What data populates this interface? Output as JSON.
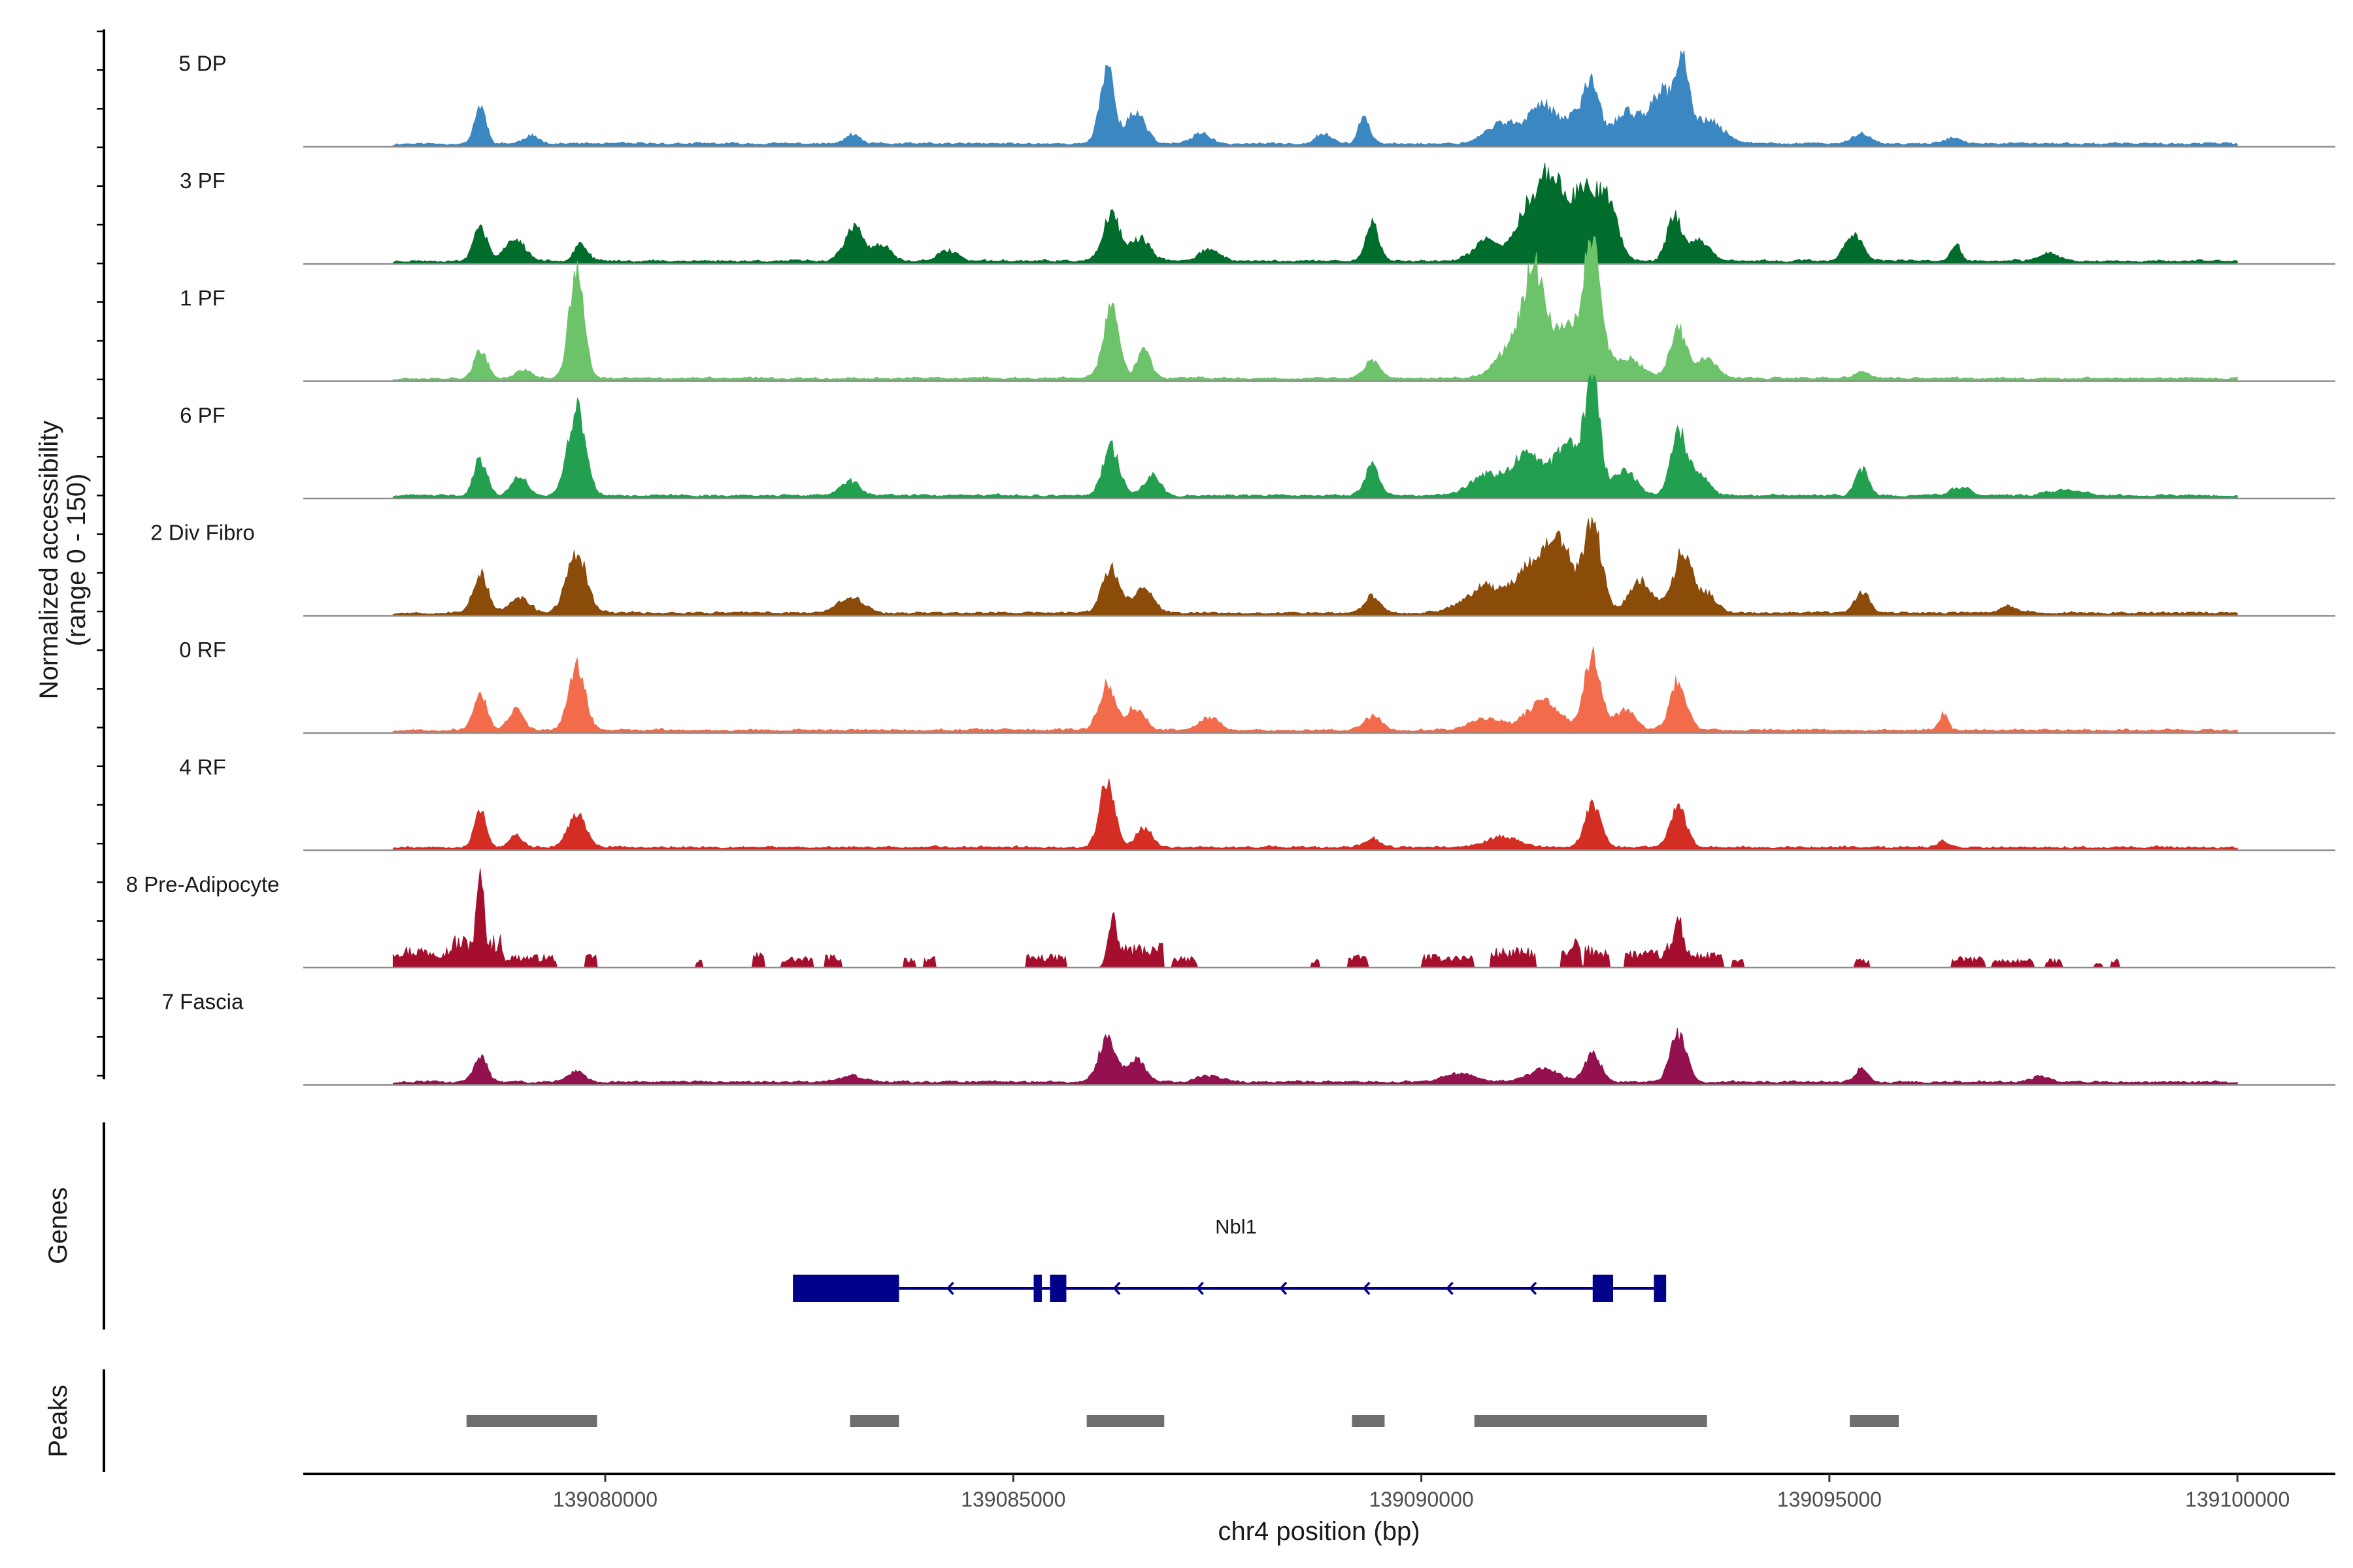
{
  "chart_data": {
    "type": "area",
    "title": "",
    "ylabel_line1": "Normalized accessibility",
    "ylabel_line2": "(range 0 - 150)",
    "y_range": [
      0,
      150
    ],
    "xlabel": "chr4 position (bp)",
    "xlim": [
      139076300,
      139101200
    ],
    "x_ticks": [
      139080000,
      139085000,
      139090000,
      139095000,
      139100000
    ],
    "x_tick_labels": [
      "139080000",
      "139085000",
      "139090000",
      "139095000",
      "139100000"
    ],
    "signal_extent": [
      139077400,
      139100000
    ],
    "tracks": [
      {
        "name": "5 DP",
        "color": "#3A87C2",
        "scale": 1.0,
        "seed": 11,
        "sparse": false,
        "peaks": [
          [
            139078470,
            0.36,
            70
          ],
          [
            139079100,
            0.07,
            100
          ],
          [
            139083030,
            0.09,
            80
          ],
          [
            139086150,
            0.74,
            85
          ],
          [
            139086500,
            0.3,
            120
          ],
          [
            139087300,
            0.11,
            100
          ],
          [
            139088800,
            0.1,
            100
          ],
          [
            139089300,
            0.28,
            65
          ],
          [
            139091000,
            0.2,
            200
          ],
          [
            139091500,
            0.37,
            170
          ],
          [
            139091900,
            0.28,
            120
          ],
          [
            139092100,
            0.53,
            90
          ],
          [
            139092500,
            0.3,
            150
          ],
          [
            139092950,
            0.5,
            160
          ],
          [
            139093200,
            0.58,
            80
          ],
          [
            139093500,
            0.22,
            200
          ],
          [
            139095400,
            0.11,
            100
          ],
          [
            139096500,
            0.06,
            100
          ]
        ]
      },
      {
        "name": "3 PF",
        "color": "#006D2C",
        "scale": 1.0,
        "seed": 23,
        "sparse": false,
        "peaks": [
          [
            139078470,
            0.34,
            80
          ],
          [
            139078900,
            0.21,
            120
          ],
          [
            139079700,
            0.18,
            80
          ],
          [
            139083050,
            0.32,
            120
          ],
          [
            139083400,
            0.15,
            100
          ],
          [
            139084200,
            0.1,
            120
          ],
          [
            139086200,
            0.45,
            100
          ],
          [
            139086550,
            0.22,
            120
          ],
          [
            139087400,
            0.12,
            120
          ],
          [
            139089400,
            0.37,
            80
          ],
          [
            139090800,
            0.2,
            150
          ],
          [
            139091300,
            0.5,
            150
          ],
          [
            139091600,
            0.8,
            140
          ],
          [
            139092000,
            0.72,
            150
          ],
          [
            139092300,
            0.5,
            120
          ],
          [
            139093100,
            0.43,
            90
          ],
          [
            139093400,
            0.2,
            120
          ],
          [
            139095300,
            0.26,
            110
          ],
          [
            139096550,
            0.16,
            60
          ],
          [
            139097700,
            0.07,
            120
          ]
        ]
      },
      {
        "name": "1 PF",
        "color": "#6CC36A",
        "scale": 1.0,
        "seed": 37,
        "sparse": false,
        "peaks": [
          [
            139078470,
            0.26,
            80
          ],
          [
            139079000,
            0.08,
            100
          ],
          [
            139079650,
            1.02,
            90
          ],
          [
            139086200,
            0.65,
            100
          ],
          [
            139086600,
            0.28,
            80
          ],
          [
            139089400,
            0.17,
            100
          ],
          [
            139091200,
            0.4,
            220
          ],
          [
            139091400,
            0.8,
            120
          ],
          [
            139091800,
            0.55,
            160
          ],
          [
            139092100,
            1.25,
            100
          ],
          [
            139092500,
            0.2,
            200
          ],
          [
            139093150,
            0.46,
            100
          ],
          [
            139093500,
            0.2,
            120
          ],
          [
            139095400,
            0.06,
            100
          ]
        ]
      },
      {
        "name": "6 PF",
        "color": "#22A050",
        "scale": 1.0,
        "seed": 41,
        "sparse": false,
        "peaks": [
          [
            139078470,
            0.35,
            80
          ],
          [
            139078950,
            0.18,
            100
          ],
          [
            139079650,
            0.82,
            110
          ],
          [
            139083000,
            0.14,
            120
          ],
          [
            139086200,
            0.46,
            100
          ],
          [
            139086700,
            0.2,
            100
          ],
          [
            139089400,
            0.28,
            90
          ],
          [
            139090800,
            0.2,
            200
          ],
          [
            139091300,
            0.4,
            180
          ],
          [
            139091800,
            0.5,
            160
          ],
          [
            139092100,
            1.07,
            90
          ],
          [
            139092500,
            0.24,
            140
          ],
          [
            139093150,
            0.6,
            90
          ],
          [
            139093400,
            0.22,
            120
          ],
          [
            139095400,
            0.25,
            80
          ],
          [
            139096600,
            0.08,
            120
          ],
          [
            139097900,
            0.06,
            200
          ]
        ]
      },
      {
        "name": "2 Div Fibro",
        "color": "#8B4C0A",
        "scale": 1.0,
        "seed": 53,
        "sparse": false,
        "peaks": [
          [
            139078470,
            0.38,
            90
          ],
          [
            139078950,
            0.14,
            120
          ],
          [
            139079650,
            0.58,
            120
          ],
          [
            139083000,
            0.16,
            150
          ],
          [
            139086200,
            0.42,
            110
          ],
          [
            139086600,
            0.22,
            120
          ],
          [
            139089400,
            0.16,
            90
          ],
          [
            139090800,
            0.25,
            250
          ],
          [
            139091400,
            0.45,
            200
          ],
          [
            139091700,
            0.55,
            160
          ],
          [
            139092100,
            0.85,
            110
          ],
          [
            139092700,
            0.3,
            150
          ],
          [
            139093200,
            0.58,
            110
          ],
          [
            139093500,
            0.18,
            120
          ],
          [
            139095400,
            0.2,
            90
          ],
          [
            139097200,
            0.06,
            100
          ]
        ]
      },
      {
        "name": "0 RF",
        "color": "#F26B4A",
        "scale": 1.0,
        "seed": 67,
        "sparse": false,
        "peaks": [
          [
            139078470,
            0.34,
            80
          ],
          [
            139078900,
            0.2,
            90
          ],
          [
            139079650,
            0.62,
            100
          ],
          [
            139086150,
            0.44,
            100
          ],
          [
            139086500,
            0.22,
            110
          ],
          [
            139087400,
            0.12,
            120
          ],
          [
            139089400,
            0.14,
            100
          ],
          [
            139090800,
            0.12,
            200
          ],
          [
            139091500,
            0.28,
            200
          ],
          [
            139092100,
            0.72,
            100
          ],
          [
            139092500,
            0.2,
            120
          ],
          [
            139093150,
            0.47,
            100
          ],
          [
            139096400,
            0.16,
            50
          ]
        ]
      },
      {
        "name": "4 RF",
        "color": "#D42E24",
        "scale": 1.0,
        "seed": 79,
        "sparse": false,
        "peaks": [
          [
            139078470,
            0.38,
            70
          ],
          [
            139078900,
            0.12,
            80
          ],
          [
            139079650,
            0.32,
            110
          ],
          [
            139086150,
            0.65,
            90
          ],
          [
            139086600,
            0.18,
            100
          ],
          [
            139089400,
            0.08,
            100
          ],
          [
            139091000,
            0.1,
            200
          ],
          [
            139092100,
            0.4,
            100
          ],
          [
            139093150,
            0.38,
            100
          ],
          [
            139096400,
            0.06,
            80
          ]
        ]
      },
      {
        "name": "8 Pre-Adipocyte",
        "color": "#A50F2D",
        "scale": 1.0,
        "seed": 97,
        "sparse": true,
        "blocks": [
          [
            139077400,
            139078100,
            0.2
          ],
          [
            139078100,
            139078750,
            0.3
          ],
          [
            139078750,
            139079400,
            0.12
          ],
          [
            139079750,
            139079900,
            0.12
          ],
          [
            139081100,
            139081200,
            0.08
          ],
          [
            139081800,
            139081950,
            0.14
          ],
          [
            139082150,
            139082550,
            0.1
          ],
          [
            139082700,
            139082900,
            0.12
          ],
          [
            139083650,
            139083800,
            0.1
          ],
          [
            139083900,
            139084050,
            0.1
          ],
          [
            139085150,
            139085650,
            0.12
          ],
          [
            139086200,
            139086850,
            0.22
          ],
          [
            139086950,
            139087250,
            0.1
          ],
          [
            139088650,
            139088750,
            0.08
          ],
          [
            139089100,
            139089350,
            0.12
          ],
          [
            139090000,
            139090650,
            0.12
          ],
          [
            139090850,
            139091400,
            0.18
          ],
          [
            139091700,
            139091950,
            0.16
          ],
          [
            139092000,
            139092300,
            0.2
          ],
          [
            139092500,
            139093000,
            0.16
          ],
          [
            139093000,
            139093300,
            0.24
          ],
          [
            139093300,
            139093700,
            0.14
          ],
          [
            139093800,
            139093950,
            0.08
          ],
          [
            139095300,
            139095500,
            0.08
          ],
          [
            139096500,
            139096900,
            0.1
          ],
          [
            139097000,
            139097500,
            0.08
          ],
          [
            139097650,
            139097850,
            0.08
          ],
          [
            139098250,
            139098350,
            0.06
          ],
          [
            139098450,
            139098550,
            0.08
          ]
        ],
        "peaks": [
          [
            139078470,
            0.65,
            40
          ],
          [
            139086200,
            0.38,
            50
          ],
          [
            139093150,
            0.3,
            40
          ],
          [
            139091900,
            0.12,
            40
          ]
        ]
      },
      {
        "name": "7 Fascia",
        "color": "#93114F",
        "scale": 1.0,
        "seed": 113,
        "sparse": false,
        "peaks": [
          [
            139078470,
            0.26,
            80
          ],
          [
            139079650,
            0.1,
            100
          ],
          [
            139083000,
            0.06,
            150
          ],
          [
            139086150,
            0.42,
            100
          ],
          [
            139086500,
            0.22,
            110
          ],
          [
            139087400,
            0.06,
            150
          ],
          [
            139090500,
            0.08,
            200
          ],
          [
            139091500,
            0.12,
            200
          ],
          [
            139092100,
            0.26,
            100
          ],
          [
            139093150,
            0.46,
            100
          ],
          [
            139095400,
            0.12,
            80
          ],
          [
            139097600,
            0.06,
            100
          ]
        ]
      }
    ],
    "genes_label": "Genes",
    "gene": {
      "name": "Nbl1",
      "color": "#00008B",
      "start": 139082300,
      "end": 139093000,
      "strand": "-",
      "exons": [
        [
          139082300,
          139083600
        ],
        [
          139085250,
          139085350
        ],
        [
          139085450,
          139085650
        ],
        [
          139092100,
          139092350
        ],
        [
          139092850,
          139093000
        ]
      ]
    },
    "peaks_label": "Peaks",
    "peak_color": "#6E6E6E",
    "peak_regions": [
      [
        139078300,
        139079900
      ],
      [
        139083000,
        139083600
      ],
      [
        139085900,
        139086850
      ],
      [
        139089150,
        139089550
      ],
      [
        139090650,
        139093500
      ],
      [
        139095250,
        139095850
      ]
    ]
  }
}
